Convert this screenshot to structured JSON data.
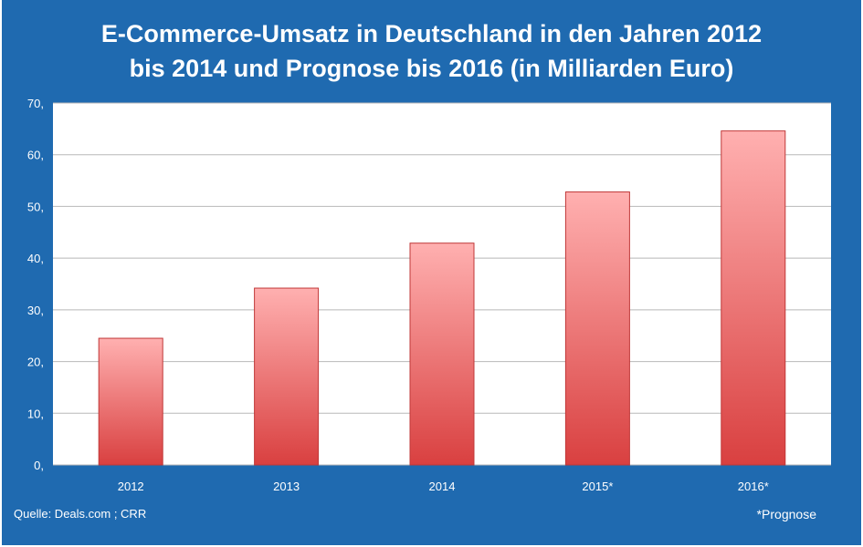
{
  "chart_data": {
    "type": "bar",
    "title_line1": "E-Commerce-Umsatz in Deutschland in den Jahren 2012",
    "title_line2": "bis 2014 und Prognose bis 2016 (in Milliarden Euro)",
    "categories": [
      "2012",
      "2013",
      "2014",
      "2015*",
      "2016*"
    ],
    "values": [
      24.5,
      34.2,
      42.9,
      52.8,
      64.6
    ],
    "ylim": [
      0,
      70
    ],
    "yticks": [
      "0,",
      "10,",
      "20,",
      "30,",
      "40,",
      "50,",
      "60,",
      "70,"
    ],
    "grid": true,
    "colors": {
      "frame": "#1f6ab0",
      "bar_top": "#ffb0b0",
      "bar_bottom": "#d94040",
      "grid": "#b8b8b8"
    }
  },
  "source": "Quelle: Deals.com ; CRR",
  "footnote": "*Prognose"
}
